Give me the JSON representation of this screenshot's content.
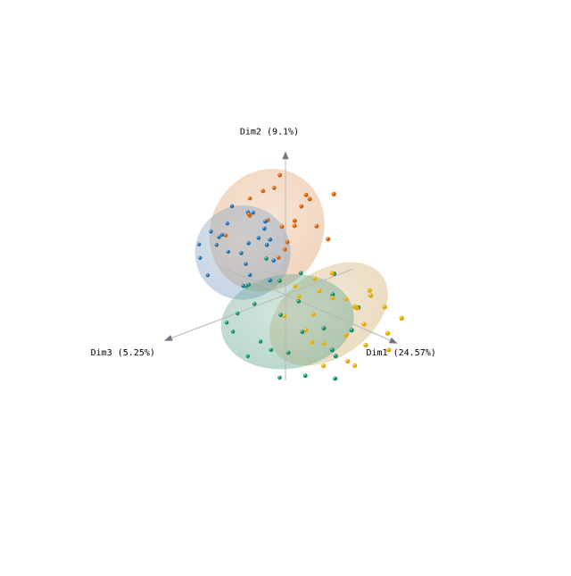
{
  "chart_data": {
    "type": "scatter",
    "projection": "3d",
    "axes": {
      "x": {
        "label": "Dim1 (24.57%)"
      },
      "y": {
        "label": "Dim2 (9.1%)"
      },
      "z": {
        "label": "Dim3 (5.25%)"
      }
    },
    "grid": false,
    "legend": "none",
    "series": [
      {
        "color": "#d95f02",
        "ellipsoid_color": "#e0a370",
        "marker": "sphere",
        "center": [
          -0.4,
          2.2,
          0.4
        ],
        "spread": [
          1.3,
          1.6,
          0.9
        ],
        "points": [
          [
            -0.3,
            3.6,
            0.2
          ],
          [
            0.5,
            3.4,
            -0.4
          ],
          [
            -1.1,
            3.1,
            0.5
          ],
          [
            0.9,
            3.3,
            0.1
          ],
          [
            1.6,
            3.7,
            -0.6
          ],
          [
            -0.6,
            2.8,
            0.9
          ],
          [
            0.2,
            2.5,
            -0.2
          ],
          [
            -1.4,
            2.4,
            0.3
          ],
          [
            1.2,
            2.9,
            0.6
          ],
          [
            -0.8,
            1.9,
            -0.5
          ],
          [
            0.6,
            2.1,
            0.4
          ],
          [
            -1.9,
            1.7,
            0.8
          ],
          [
            1.7,
            2.3,
            -0.3
          ],
          [
            0.1,
            1.6,
            0.1
          ],
          [
            -0.4,
            3.9,
            -0.1
          ],
          [
            1.9,
            3.0,
            0.3
          ],
          [
            -1.6,
            2.9,
            -0.4
          ],
          [
            0.8,
            1.8,
            0.9
          ],
          [
            -0.1,
            2.7,
            0.6
          ],
          [
            0.3,
            3.1,
            -0.7
          ]
        ]
      },
      {
        "color": "#1f6fb2",
        "ellipsoid_color": "#7fa2c4",
        "marker": "sphere",
        "center": [
          -1.2,
          1.3,
          0.7
        ],
        "spread": [
          1.1,
          1.2,
          0.8
        ],
        "points": [
          [
            -1.2,
            2.6,
            0.5
          ],
          [
            -0.6,
            2.4,
            0.3
          ],
          [
            -1.7,
            2.2,
            0.9
          ],
          [
            -0.9,
            2.0,
            0.1
          ],
          [
            -2.2,
            1.6,
            0.7
          ],
          [
            -1.4,
            1.4,
            1.1
          ],
          [
            -0.4,
            1.7,
            0.4
          ],
          [
            -2.6,
            1.1,
            0.6
          ],
          [
            -1.9,
            0.9,
            0.2
          ],
          [
            -0.8,
            1.1,
            0.9
          ],
          [
            -1.1,
            0.5,
            0.5
          ],
          [
            -2.9,
            0.7,
            1.0
          ],
          [
            -3.2,
            1.0,
            0.8
          ],
          [
            -0.2,
            1.2,
            0.3
          ],
          [
            -1.6,
            1.9,
            1.3
          ],
          [
            -0.7,
            2.8,
            0.7
          ],
          [
            -2.1,
            2.5,
            0.4
          ],
          [
            -1.3,
            0.1,
            0.6
          ],
          [
            -2.4,
            0.3,
            1.1
          ],
          [
            -0.5,
            0.4,
            0.2
          ],
          [
            -3.0,
            1.4,
            0.5
          ],
          [
            -1.0,
            1.5,
            -0.2
          ],
          [
            -1.8,
            1.2,
            0.0
          ],
          [
            -0.3,
            2.1,
            0.8
          ]
        ]
      },
      {
        "color": "#e6ab02",
        "ellipsoid_color": "#d4b47a",
        "marker": "sphere",
        "center": [
          1.6,
          -0.3,
          -0.4
        ],
        "spread": [
          1.6,
          1.1,
          0.8
        ],
        "points": [
          [
            1.8,
            0.3,
            -0.4
          ],
          [
            2.6,
            0.1,
            -0.7
          ],
          [
            1.1,
            -0.4,
            -0.2
          ],
          [
            3.2,
            -0.2,
            -0.5
          ],
          [
            0.6,
            0.5,
            0.1
          ],
          [
            2.2,
            -0.9,
            -0.6
          ],
          [
            3.7,
            0.4,
            -0.9
          ],
          [
            1.5,
            -1.3,
            -0.3
          ],
          [
            0.2,
            -0.6,
            0.2
          ],
          [
            2.9,
            -1.1,
            -0.8
          ],
          [
            4.1,
            -0.3,
            -0.7
          ],
          [
            1.3,
            0.9,
            -0.1
          ],
          [
            3.4,
            0.8,
            -0.6
          ],
          [
            0.8,
            -1.5,
            -0.4
          ],
          [
            2.4,
            -1.7,
            -0.5
          ],
          [
            4.4,
            0.2,
            -1.0
          ],
          [
            1.9,
            1.2,
            -0.3
          ],
          [
            0.4,
            0.0,
            -0.2
          ],
          [
            2.7,
            0.6,
            -0.2
          ],
          [
            3.9,
            -1.0,
            -0.9
          ],
          [
            1.0,
            -0.9,
            0.0
          ],
          [
            3.0,
            -1.6,
            -0.3
          ],
          [
            2.1,
            -0.1,
            -1.0
          ],
          [
            0.9,
            0.2,
            -0.6
          ],
          [
            1.6,
            -2.0,
            -0.2
          ],
          [
            3.6,
            1.1,
            -0.4
          ]
        ]
      },
      {
        "color": "#138f6a",
        "ellipsoid_color": "#66a88f",
        "marker": "sphere",
        "center": [
          0.6,
          -0.6,
          0.4
        ],
        "spread": [
          1.6,
          1.2,
          0.9
        ],
        "points": [
          [
            0.4,
            -0.4,
            0.5
          ],
          [
            1.2,
            -0.8,
            0.3
          ],
          [
            -0.5,
            -0.2,
            0.8
          ],
          [
            2.0,
            -0.5,
            0.1
          ],
          [
            -1.2,
            -0.7,
            0.9
          ],
          [
            0.9,
            -1.5,
            0.6
          ],
          [
            2.7,
            -1.2,
            0.2
          ],
          [
            -0.2,
            -1.8,
            0.4
          ],
          [
            1.6,
            -2.1,
            0.5
          ],
          [
            -1.6,
            -1.1,
            1.0
          ],
          [
            3.1,
            -0.3,
            -0.1
          ],
          [
            0.1,
            0.6,
            0.3
          ],
          [
            1.4,
            0.4,
            0.6
          ],
          [
            -0.9,
            0.3,
            0.7
          ],
          [
            2.3,
            0.7,
            0.0
          ],
          [
            0.6,
            -2.4,
            0.7
          ],
          [
            -0.7,
            -2.0,
            0.9
          ],
          [
            2.8,
            -1.9,
            0.3
          ],
          [
            1.0,
            1.1,
            0.2
          ],
          [
            -1.4,
            0.0,
            0.4
          ],
          [
            3.3,
            0.5,
            -0.2
          ],
          [
            0.3,
            -1.1,
            1.2
          ],
          [
            1.9,
            -1.4,
            -0.3
          ],
          [
            -0.3,
            1.3,
            0.5
          ],
          [
            2.5,
            1.5,
            0.1
          ],
          [
            -1.8,
            -1.6,
            0.6
          ]
        ]
      }
    ]
  }
}
